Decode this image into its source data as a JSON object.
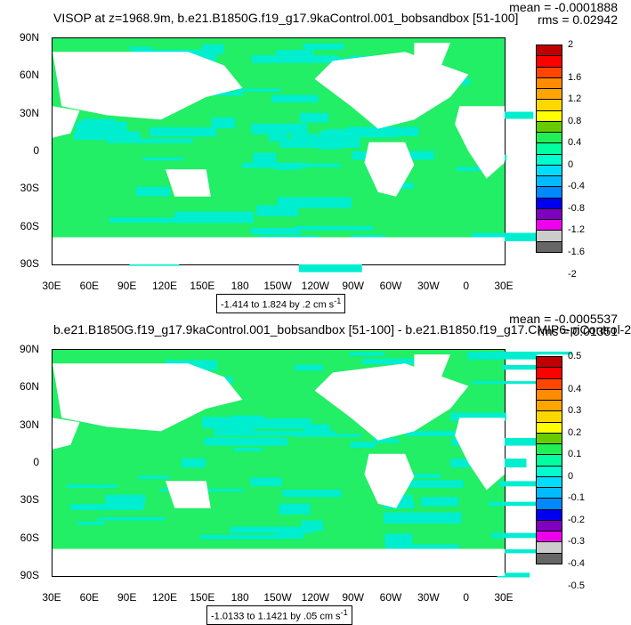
{
  "chart_data": [
    {
      "type": "heatmap",
      "title": "VISOP at z=1968.9m, b.e21.B1850G.f19_g17.9kaControl.001_bobsandbox [51-100]",
      "stats": {
        "mean": "mean = -0.0001888",
        "rms": "rms = 0.02942"
      },
      "range_label": "-1.414 to 1.824 by .2 cm s",
      "range_superscript": "-1",
      "ylabels": [
        "90N",
        "60N",
        "30N",
        "0",
        "30S",
        "60S",
        "90S"
      ],
      "xlabels": [
        "30E",
        "60E",
        "90E",
        "120E",
        "150E",
        "180",
        "150W",
        "120W",
        "90W",
        "60W",
        "30W",
        "0",
        "30E"
      ],
      "colorbar_labels": [
        "2",
        "1.6",
        "1.2",
        "0.8",
        "0.4",
        "0",
        "-0.4",
        "-0.8",
        "-1.2",
        "-1.6",
        "-2"
      ],
      "colors": [
        "#C00000",
        "#FF0000",
        "#FF4500",
        "#FF8C00",
        "#FFA500",
        "#FFD700",
        "#FFFF00",
        "#66CC00",
        "#22EE55",
        "#00FFA0",
        "#00FFCC",
        "#00DDFF",
        "#00BBFF",
        "#0088FF",
        "#0000EE",
        "#8000C0",
        "#EE00EE",
        "#CCCCCC",
        "#666666"
      ],
      "dominant_colors": [
        "#22EE66",
        "#00EED0"
      ]
    },
    {
      "type": "heatmap",
      "title": "b.e21.B1850G.f19_g17.9kaControl.001_bobsandbox [51-100] - b.e21.B1850.f19_g17.CMIP6-piControl-2",
      "stats": {
        "mean": "mean = -0.0005537",
        "rms": "rms = 0.01351"
      },
      "range_label": "-1.0133 to 1.1421 by .05 cm s",
      "range_superscript": "-1",
      "ylabels": [
        "90N",
        "60N",
        "30N",
        "0",
        "30S",
        "60S",
        "90S"
      ],
      "xlabels": [
        "30E",
        "60E",
        "90E",
        "120E",
        "150E",
        "180",
        "150W",
        "120W",
        "90W",
        "60W",
        "30W",
        "0",
        "30E"
      ],
      "colorbar_labels": [
        "0.5",
        "0.4",
        "0.3",
        "0.2",
        "0.1",
        "0",
        "-0.1",
        "-0.2",
        "-0.3",
        "-0.4",
        "-0.5"
      ],
      "colors": [
        "#C00000",
        "#FF0000",
        "#FF4500",
        "#FF8C00",
        "#FFA500",
        "#FFD700",
        "#FFFF00",
        "#66CC00",
        "#22EE55",
        "#00FFA0",
        "#00FFCC",
        "#00DDFF",
        "#00BBFF",
        "#0088FF",
        "#0000EE",
        "#8000C0",
        "#EE00EE",
        "#CCCCCC",
        "#666666"
      ],
      "dominant_colors": [
        "#22EE66",
        "#00EED0"
      ]
    }
  ]
}
